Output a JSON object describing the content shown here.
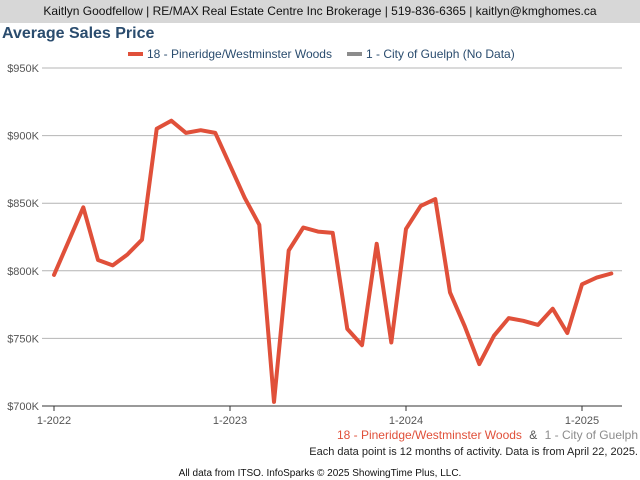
{
  "header": {
    "contact_line": "Kaitlyn Goodfellow | RE/MAX Real Estate Centre Inc Brokerage | 519-836-6365 | kaitlyn@kmghomes.ca"
  },
  "chart_title": "Average Sales Price",
  "footer": {
    "series_a_label": "18 - Pineridge/Westminster Woods",
    "ampersand": "&",
    "series_b_label": "1 - City of Guelph",
    "note": "Each data point is 12 months of activity. Data is from April 22, 2025.",
    "attribution": "All data from ITSO. InfoSparks © 2025 ShowingTime Plus, LLC."
  },
  "colors": {
    "series_a": "#e0503a",
    "series_b": "#8c8c8c",
    "title": "#2a4c6e",
    "topbar_bg": "#d7d7d7",
    "grid": "#b4b4b4"
  },
  "chart_data": {
    "type": "line",
    "title": "Average Sales Price",
    "xlabel": "",
    "ylabel": "",
    "ylim": [
      700000,
      950000
    ],
    "yticks": [
      700000,
      750000,
      800000,
      850000,
      900000,
      950000
    ],
    "ytick_labels": [
      "$700K",
      "$750K",
      "$800K",
      "$850K",
      "$900K",
      "$950K"
    ],
    "xticks": [
      {
        "label": "1-2022",
        "month": "2022-01"
      },
      {
        "label": "1-2023",
        "month": "2023-01"
      },
      {
        "label": "1-2024",
        "month": "2024-01"
      },
      {
        "label": "1-2025",
        "month": "2025-01"
      }
    ],
    "legend_position": "top-center",
    "grid": true,
    "series": [
      {
        "name": "18 - Pineridge/Westminster Woods",
        "color": "#e0503a",
        "points": [
          {
            "x": "2022-01",
            "y": 797000
          },
          {
            "x": "2022-02",
            "y": 822000
          },
          {
            "x": "2022-03",
            "y": 847000
          },
          {
            "x": "2022-04",
            "y": 808000
          },
          {
            "x": "2022-05",
            "y": 804000
          },
          {
            "x": "2022-06",
            "y": 812000
          },
          {
            "x": "2022-07",
            "y": 823000
          },
          {
            "x": "2022-08",
            "y": 905000
          },
          {
            "x": "2022-09",
            "y": 911000
          },
          {
            "x": "2022-10",
            "y": 902000
          },
          {
            "x": "2022-11",
            "y": 904000
          },
          {
            "x": "2022-12",
            "y": 902000
          },
          {
            "x": "2023-01",
            "y": 878000
          },
          {
            "x": "2023-02",
            "y": 854000
          },
          {
            "x": "2023-03",
            "y": 834000
          },
          {
            "x": "2023-04",
            "y": 703000
          },
          {
            "x": "2023-05",
            "y": 815000
          },
          {
            "x": "2023-06",
            "y": 832000
          },
          {
            "x": "2023-07",
            "y": 829000
          },
          {
            "x": "2023-08",
            "y": 828000
          },
          {
            "x": "2023-09",
            "y": 757000
          },
          {
            "x": "2023-10",
            "y": 745000
          },
          {
            "x": "2023-11",
            "y": 820000
          },
          {
            "x": "2023-12",
            "y": 747000
          },
          {
            "x": "2024-01",
            "y": 831000
          },
          {
            "x": "2024-02",
            "y": 848000
          },
          {
            "x": "2024-03",
            "y": 853000
          },
          {
            "x": "2024-04",
            "y": 784000
          },
          {
            "x": "2024-05",
            "y": 759000
          },
          {
            "x": "2024-06",
            "y": 731000
          },
          {
            "x": "2024-07",
            "y": 752000
          },
          {
            "x": "2024-08",
            "y": 765000
          },
          {
            "x": "2024-09",
            "y": 763000
          },
          {
            "x": "2024-10",
            "y": 760000
          },
          {
            "x": "2024-11",
            "y": 772000
          },
          {
            "x": "2024-12",
            "y": 754000
          },
          {
            "x": "2025-01",
            "y": 790000
          },
          {
            "x": "2025-02",
            "y": 795000
          },
          {
            "x": "2025-03",
            "y": 798000
          }
        ]
      },
      {
        "name": "1 - City of Guelph (No Data)",
        "color": "#8c8c8c",
        "points": []
      }
    ]
  }
}
